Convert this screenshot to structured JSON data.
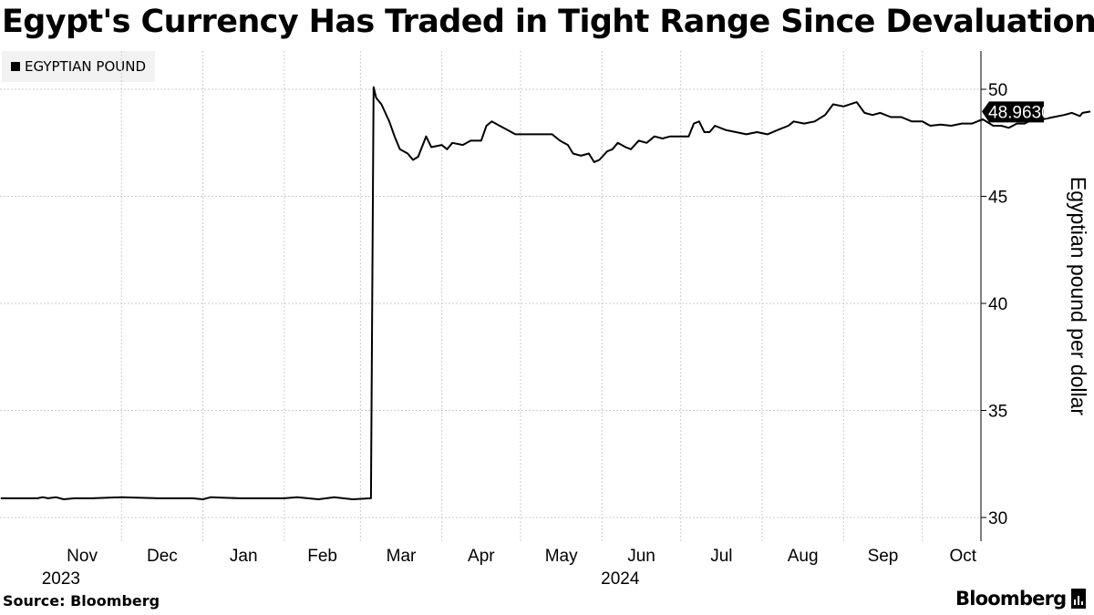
{
  "title": "Egypt's Currency Has Traded in Tight Range Since Devaluation",
  "legend_label": "EGYPTIAN POUND",
  "source": "Source: Bloomberg",
  "brand": "Bloomberg",
  "colors": {
    "line": "#000000",
    "grid": "#cccccc",
    "legend_background": "#f2f2f2",
    "label_background": "#000000",
    "label_text": "#ffffff"
  },
  "chart_data": {
    "type": "line",
    "title": "Egypt's Currency Has Traded in Tight Range Since Devaluation",
    "ylabel": "Egyptian pound per dollar",
    "ylim": [
      29,
      51.5
    ],
    "y_ticks": [
      30,
      35,
      40,
      45,
      50
    ],
    "grid": true,
    "y_axis_position": "right",
    "legend": "top-left",
    "month_ticks": [
      "Nov",
      "Dec",
      "Jan",
      "Feb",
      "Mar",
      "Apr",
      "May",
      "Jun",
      "Jul",
      "Aug",
      "Sep",
      "Oct"
    ],
    "year_labels": [
      {
        "label": "2023",
        "month": "Nov"
      },
      {
        "label": "2024",
        "month": "Jun"
      }
    ],
    "last_value_label": "48.9630",
    "series": [
      {
        "name": "EGYPTIAN POUND",
        "points": [
          [
            "2023-10-16",
            30.9
          ],
          [
            "2023-10-30",
            30.9
          ],
          [
            "2023-11-01",
            30.95
          ],
          [
            "2023-11-03",
            30.9
          ],
          [
            "2023-11-06",
            30.95
          ],
          [
            "2023-11-09",
            30.85
          ],
          [
            "2023-11-13",
            30.9
          ],
          [
            "2023-11-20",
            30.9
          ],
          [
            "2023-12-01",
            30.95
          ],
          [
            "2023-12-15",
            30.9
          ],
          [
            "2023-12-28",
            30.9
          ],
          [
            "2024-01-01",
            30.85
          ],
          [
            "2024-01-04",
            30.95
          ],
          [
            "2024-01-15",
            30.9
          ],
          [
            "2024-02-01",
            30.9
          ],
          [
            "2024-02-06",
            30.95
          ],
          [
            "2024-02-14",
            30.85
          ],
          [
            "2024-02-20",
            30.95
          ],
          [
            "2024-02-27",
            30.85
          ],
          [
            "2024-03-05",
            30.9
          ],
          [
            "2024-03-06",
            50.1
          ],
          [
            "2024-03-07",
            49.6
          ],
          [
            "2024-03-09",
            49.3
          ],
          [
            "2024-03-12",
            48.5
          ],
          [
            "2024-03-14",
            47.8
          ],
          [
            "2024-03-16",
            47.2
          ],
          [
            "2024-03-19",
            47.0
          ],
          [
            "2024-03-21",
            46.7
          ],
          [
            "2024-03-23",
            46.85
          ],
          [
            "2024-03-26",
            47.8
          ],
          [
            "2024-03-28",
            47.3
          ],
          [
            "2024-04-01",
            47.4
          ],
          [
            "2024-04-03",
            47.2
          ],
          [
            "2024-04-05",
            47.5
          ],
          [
            "2024-04-09",
            47.4
          ],
          [
            "2024-04-12",
            47.6
          ],
          [
            "2024-04-16",
            47.6
          ],
          [
            "2024-04-18",
            48.3
          ],
          [
            "2024-04-20",
            48.5
          ],
          [
            "2024-04-23",
            48.3
          ],
          [
            "2024-04-26",
            48.1
          ],
          [
            "2024-04-29",
            47.9
          ],
          [
            "2024-05-06",
            47.9
          ],
          [
            "2024-05-13",
            47.9
          ],
          [
            "2024-05-16",
            47.6
          ],
          [
            "2024-05-19",
            47.4
          ],
          [
            "2024-05-21",
            47.0
          ],
          [
            "2024-05-24",
            46.9
          ],
          [
            "2024-05-27",
            47.0
          ],
          [
            "2024-05-29",
            46.6
          ],
          [
            "2024-05-31",
            46.7
          ],
          [
            "2024-06-03",
            47.1
          ],
          [
            "2024-06-05",
            47.2
          ],
          [
            "2024-06-07",
            47.5
          ],
          [
            "2024-06-10",
            47.3
          ],
          [
            "2024-06-12",
            47.2
          ],
          [
            "2024-06-15",
            47.6
          ],
          [
            "2024-06-18",
            47.5
          ],
          [
            "2024-06-21",
            47.8
          ],
          [
            "2024-06-24",
            47.7
          ],
          [
            "2024-06-27",
            47.8
          ],
          [
            "2024-07-04",
            47.8
          ],
          [
            "2024-07-06",
            48.4
          ],
          [
            "2024-07-08",
            48.5
          ],
          [
            "2024-07-10",
            48.0
          ],
          [
            "2024-07-12",
            48.0
          ],
          [
            "2024-07-14",
            48.3
          ],
          [
            "2024-07-18",
            48.1
          ],
          [
            "2024-07-22",
            48.0
          ],
          [
            "2024-07-26",
            47.9
          ],
          [
            "2024-07-30",
            48.0
          ],
          [
            "2024-08-03",
            47.9
          ],
          [
            "2024-08-07",
            48.1
          ],
          [
            "2024-08-11",
            48.3
          ],
          [
            "2024-08-13",
            48.5
          ],
          [
            "2024-08-17",
            48.4
          ],
          [
            "2024-08-21",
            48.5
          ],
          [
            "2024-08-25",
            48.8
          ],
          [
            "2024-08-28",
            49.3
          ],
          [
            "2024-09-01",
            49.2
          ],
          [
            "2024-09-06",
            49.4
          ],
          [
            "2024-09-09",
            48.9
          ],
          [
            "2024-09-12",
            48.8
          ],
          [
            "2024-09-15",
            48.9
          ],
          [
            "2024-09-19",
            48.7
          ],
          [
            "2024-09-23",
            48.7
          ],
          [
            "2024-09-27",
            48.5
          ],
          [
            "2024-10-01",
            48.5
          ],
          [
            "2024-10-04",
            48.3
          ],
          [
            "2024-10-08",
            48.35
          ],
          [
            "2024-10-12",
            48.3
          ],
          [
            "2024-10-16",
            48.4
          ],
          [
            "2024-10-20",
            48.4
          ],
          [
            "2024-10-24",
            48.6
          ],
          [
            "2024-10-28",
            48.3
          ],
          [
            "2024-10-31",
            48.3
          ],
          [
            "2024-11-03",
            48.2
          ],
          [
            "2024-11-06",
            48.4
          ],
          [
            "2024-11-09",
            48.4
          ],
          [
            "2024-11-12",
            48.6
          ],
          [
            "2024-11-16",
            48.6
          ],
          [
            "2024-11-20",
            48.7
          ],
          [
            "2024-11-24",
            48.8
          ],
          [
            "2024-11-27",
            48.9
          ],
          [
            "2024-11-30",
            48.75
          ],
          [
            "2024-12-01",
            48.9
          ],
          [
            "2024-12-04",
            48.963
          ]
        ]
      }
    ]
  }
}
